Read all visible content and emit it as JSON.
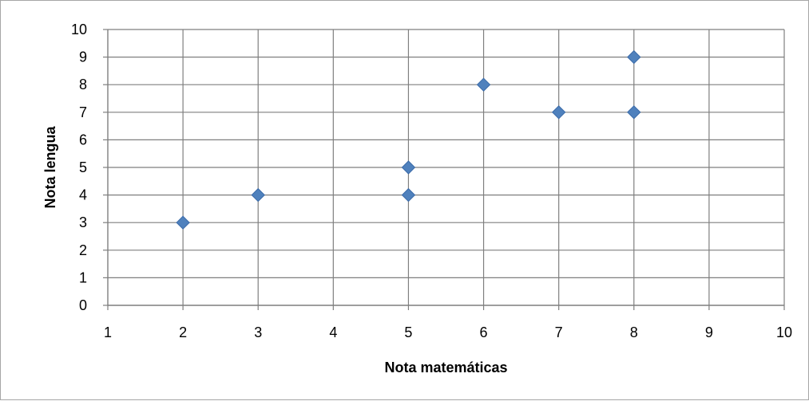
{
  "chart_data": {
    "type": "scatter",
    "title": "",
    "xlabel": "Nota matemáticas",
    "ylabel": "Nota lengua",
    "xlim": [
      1,
      10
    ],
    "ylim": [
      0,
      10
    ],
    "x_ticks": [
      "1",
      "2",
      "3",
      "4",
      "5",
      "6",
      "7",
      "8",
      "9",
      "10"
    ],
    "y_ticks": [
      "0",
      "1",
      "2",
      "3",
      "4",
      "5",
      "6",
      "7",
      "8",
      "9",
      "10"
    ],
    "grid": true,
    "legend": "none",
    "marker": "diamond",
    "colors": {
      "marker_fill": "#4f81bd",
      "marker_stroke": "#3a6aa8",
      "grid": "#7f7f7f",
      "axis": "#7f7f7f"
    },
    "series": [
      {
        "points": [
          {
            "x": 2,
            "y": 3
          },
          {
            "x": 3,
            "y": 4
          },
          {
            "x": 5,
            "y": 5
          },
          {
            "x": 5,
            "y": 4
          },
          {
            "x": 6,
            "y": 8
          },
          {
            "x": 7,
            "y": 7
          },
          {
            "x": 8,
            "y": 9
          },
          {
            "x": 8,
            "y": 7
          }
        ]
      }
    ]
  }
}
